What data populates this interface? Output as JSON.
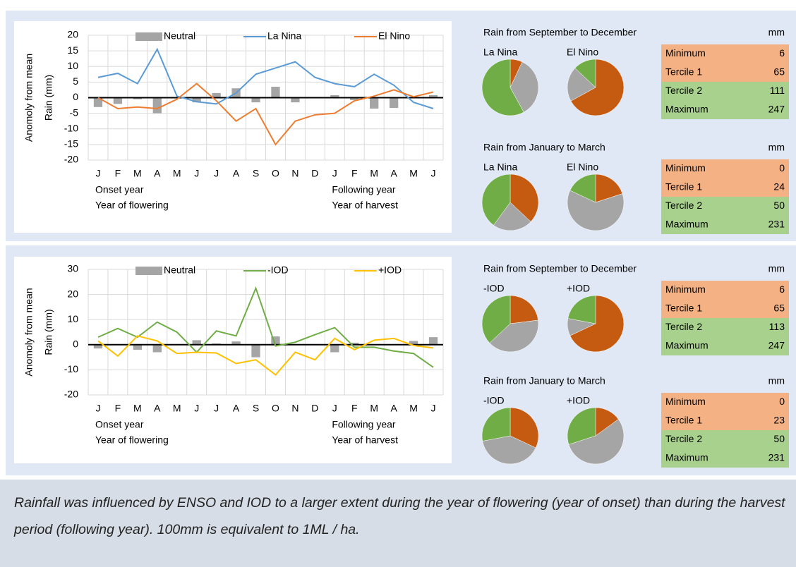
{
  "chart_data": [
    {
      "type": "line",
      "categories": [
        "J",
        "F",
        "M",
        "A",
        "M",
        "J",
        "J",
        "A",
        "S",
        "O",
        "N",
        "D",
        "J",
        "F",
        "M",
        "A",
        "M",
        "J"
      ],
      "ylabel": [
        "Anomoly from mean",
        "Rain (mm)"
      ],
      "annotations": [
        "Onset year",
        "Year of flowering",
        "Following year",
        "Year of harvest"
      ],
      "ylim": [
        -20,
        20
      ],
      "yticks": [
        -20,
        -15,
        -10,
        -5,
        0,
        5,
        10,
        15,
        20
      ],
      "grid": true,
      "series": [
        {
          "name": "Neutral",
          "type": "bar",
          "color": "#a5a5a5",
          "values": [
            -3,
            -2,
            -0.5,
            -5,
            0,
            -1.5,
            1.5,
            3,
            -1.5,
            3.5,
            -1.5,
            0,
            0.8,
            -0.8,
            -3.5,
            -3.3,
            0,
            0.8
          ]
        },
        {
          "name": "La Nina",
          "color": "#5b9bd5",
          "values": [
            6.5,
            7.8,
            4.5,
            15.5,
            0.5,
            -1.3,
            -2,
            1.5,
            7.5,
            9.5,
            11.5,
            6.5,
            4.5,
            3.5,
            7.5,
            4,
            -1.5,
            -3.5
          ]
        },
        {
          "name": "El Nino",
          "color": "#ed7d31",
          "values": [
            0,
            -3.5,
            -3,
            -3.5,
            -0.5,
            4.5,
            -1,
            -7.5,
            -3.5,
            -15,
            -7.5,
            -5.5,
            -5,
            -1,
            0.5,
            2.5,
            0.3,
            1.8
          ]
        }
      ]
    },
    {
      "type": "line",
      "categories": [
        "J",
        "F",
        "M",
        "A",
        "M",
        "J",
        "J",
        "A",
        "S",
        "O",
        "N",
        "D",
        "J",
        "F",
        "M",
        "A",
        "M",
        "J"
      ],
      "ylabel": [
        "Anomoly from mean",
        "Rain (mm)"
      ],
      "annotations": [
        "Onset year",
        "Year of flowering",
        "Following year",
        "Year of harvest"
      ],
      "ylim": [
        -20,
        30
      ],
      "yticks": [
        -20,
        -10,
        0,
        10,
        20,
        30
      ],
      "grid": true,
      "series": [
        {
          "name": "Neutral",
          "type": "bar",
          "color": "#a5a5a5",
          "values": [
            -1.5,
            0,
            -2,
            -3,
            0,
            1.8,
            0.5,
            1.3,
            -5,
            3.3,
            0,
            0,
            -3,
            0.8,
            0,
            0,
            1.5,
            3
          ]
        },
        {
          "name": "-IOD",
          "color": "#70ad47",
          "values": [
            3,
            6.5,
            3,
            9,
            5,
            -3,
            5.5,
            3.5,
            22.5,
            -0.5,
            1,
            4,
            6.8,
            -1,
            -1,
            -2.5,
            -3.5,
            -9
          ]
        },
        {
          "name": "+IOD",
          "color": "#ffc000",
          "values": [
            1.5,
            -4.5,
            3.5,
            1.5,
            -3.5,
            -3,
            -3.3,
            -7.5,
            -6,
            -12,
            -3,
            -6,
            2.5,
            -2,
            1.8,
            2.5,
            -0.3,
            -1.3
          ]
        }
      ]
    },
    {
      "type": "pie",
      "title": "La Nina",
      "values": [
        7,
        35,
        58
      ],
      "colors": [
        "#c55a11",
        "#a5a5a5",
        "#70ad47"
      ]
    },
    {
      "type": "pie",
      "title": "El Nino",
      "values": [
        67,
        20,
        13
      ],
      "colors": [
        "#c55a11",
        "#a5a5a5",
        "#70ad47"
      ]
    },
    {
      "type": "pie",
      "title": "La Nina",
      "values": [
        37,
        23,
        40
      ],
      "colors": [
        "#c55a11",
        "#a5a5a5",
        "#70ad47"
      ]
    },
    {
      "type": "pie",
      "title": "El Nino",
      "values": [
        20,
        62,
        18
      ],
      "colors": [
        "#c55a11",
        "#a5a5a5",
        "#70ad47"
      ]
    },
    {
      "type": "pie",
      "title": "-IOD",
      "values": [
        23,
        40,
        37
      ],
      "colors": [
        "#c55a11",
        "#a5a5a5",
        "#70ad47"
      ]
    },
    {
      "type": "pie",
      "title": "+IOD",
      "values": [
        68,
        10,
        22
      ],
      "colors": [
        "#c55a11",
        "#a5a5a5",
        "#70ad47"
      ]
    },
    {
      "type": "pie",
      "title": "-IOD",
      "values": [
        32,
        40,
        28
      ],
      "colors": [
        "#c55a11",
        "#a5a5a5",
        "#70ad47"
      ]
    },
    {
      "type": "pie",
      "title": "+IOD",
      "values": [
        15,
        55,
        30
      ],
      "colors": [
        "#c55a11",
        "#a5a5a5",
        "#70ad47"
      ]
    }
  ],
  "sections": [
    {
      "title": "Rain from September to December",
      "unit": "mm",
      "rows": [
        [
          "Minimum",
          6
        ],
        [
          "Tercile 1",
          65
        ],
        [
          "Tercile 2",
          111
        ],
        [
          "Maximum",
          247
        ]
      ]
    },
    {
      "title": "Rain from January to March",
      "unit": "mm",
      "rows": [
        [
          "Minimum",
          0
        ],
        [
          "Tercile 1",
          24
        ],
        [
          "Tercile 2",
          50
        ],
        [
          "Maximum",
          231
        ]
      ]
    },
    {
      "title": "Rain from September to December",
      "unit": "mm",
      "rows": [
        [
          "Minimum",
          6
        ],
        [
          "Tercile 1",
          65
        ],
        [
          "Tercile 2",
          113
        ],
        [
          "Maximum",
          247
        ]
      ]
    },
    {
      "title": "Rain from January to March",
      "unit": "mm",
      "rows": [
        [
          "Minimum",
          0
        ],
        [
          "Tercile 1",
          23
        ],
        [
          "Tercile 2",
          50
        ],
        [
          "Maximum",
          231
        ]
      ]
    }
  ],
  "caption": "Rainfall was influenced by ENSO and IOD to a larger extent during the year of flowering (year of onset) than during the harvest period (following year). 100mm is equivalent to 1ML / ha."
}
